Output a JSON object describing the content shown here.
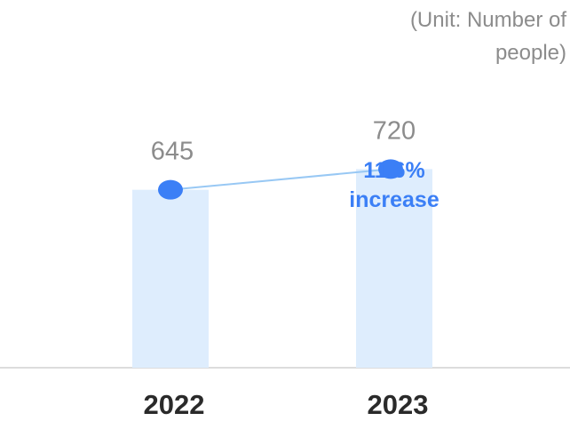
{
  "chart_data": {
    "type": "bar",
    "unit_note": "(Unit: Number of people)",
    "categories": [
      "2022",
      "2023"
    ],
    "values": [
      645,
      720
    ],
    "value_labels": [
      "645",
      "720"
    ],
    "trend_line": true,
    "annotation": {
      "line1": "11.6%",
      "line2": "increase"
    },
    "grid": false,
    "colors": {
      "bar": "#deedfd",
      "line": "#98c8f4",
      "point": "#3b7ff6",
      "annotation": "#3b7ff6",
      "value_label": "#8c8c8c",
      "category_label": "#2a2a2a",
      "baseline": "#d0d0d0"
    }
  }
}
